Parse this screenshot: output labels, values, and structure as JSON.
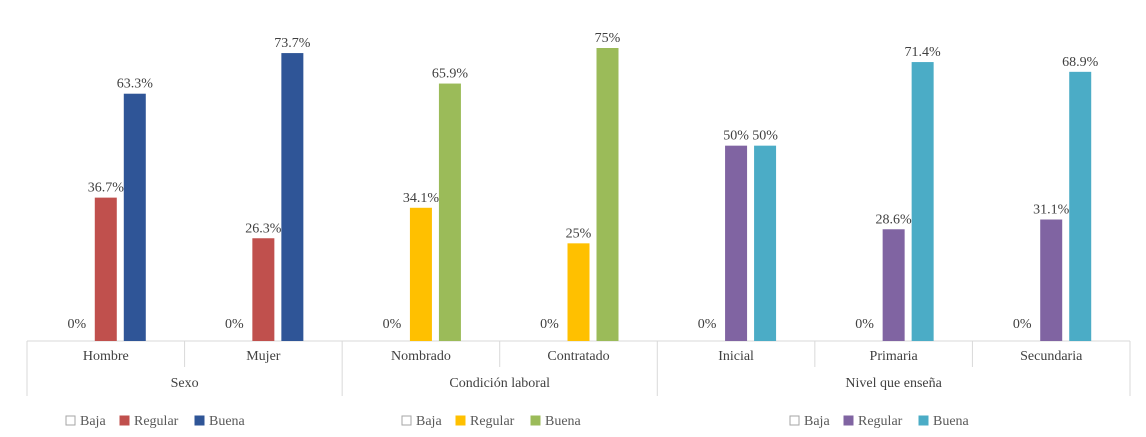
{
  "chart_data": {
    "type": "bar",
    "ylim": [
      0,
      80
    ],
    "grid": false,
    "legend_position": "bottom",
    "series_names": [
      "Baja",
      "Regular",
      "Buena"
    ],
    "groups": [
      {
        "name": "Sexo",
        "categories": [
          "Hombre",
          "Mujer"
        ],
        "colors": [
          "#ffffff",
          "#c0504d",
          "#2f5597"
        ],
        "series": [
          {
            "name": "Baja",
            "values": [
              0,
              0
            ],
            "labels": [
              "0%",
              "0%"
            ]
          },
          {
            "name": "Regular",
            "values": [
              36.7,
              26.3
            ],
            "labels": [
              "36.7%",
              "26.3%"
            ]
          },
          {
            "name": "Buena",
            "values": [
              63.3,
              73.7
            ],
            "labels": [
              "63.3%",
              "73.7%"
            ]
          }
        ]
      },
      {
        "name": "Condición laboral",
        "categories": [
          "Nombrado",
          "Contratado"
        ],
        "colors": [
          "#ffffff",
          "#ffc000",
          "#9bbb59"
        ],
        "series": [
          {
            "name": "Baja",
            "values": [
              0,
              0
            ],
            "labels": [
              "0%",
              "0%"
            ]
          },
          {
            "name": "Regular",
            "values": [
              34.1,
              25
            ],
            "labels": [
              "34.1%",
              "25%"
            ]
          },
          {
            "name": "Buena",
            "values": [
              65.9,
              75
            ],
            "labels": [
              "65.9%",
              "75%"
            ]
          }
        ]
      },
      {
        "name": "Nivel que enseña",
        "categories": [
          "Inicial",
          "Primaria",
          "Secundaria"
        ],
        "colors": [
          "#ffffff",
          "#8064a2",
          "#4bacc6"
        ],
        "series": [
          {
            "name": "Baja",
            "values": [
              0,
              0,
              0
            ],
            "labels": [
              "0%",
              "0%",
              "0%"
            ]
          },
          {
            "name": "Regular",
            "values": [
              50,
              28.6,
              31.1
            ],
            "labels": [
              "50%",
              "28.6%",
              "31.1%"
            ]
          },
          {
            "name": "Buena",
            "values": [
              50,
              71.4,
              68.9
            ],
            "labels": [
              "50%",
              "71.4%",
              "68.9%"
            ]
          }
        ]
      }
    ]
  }
}
